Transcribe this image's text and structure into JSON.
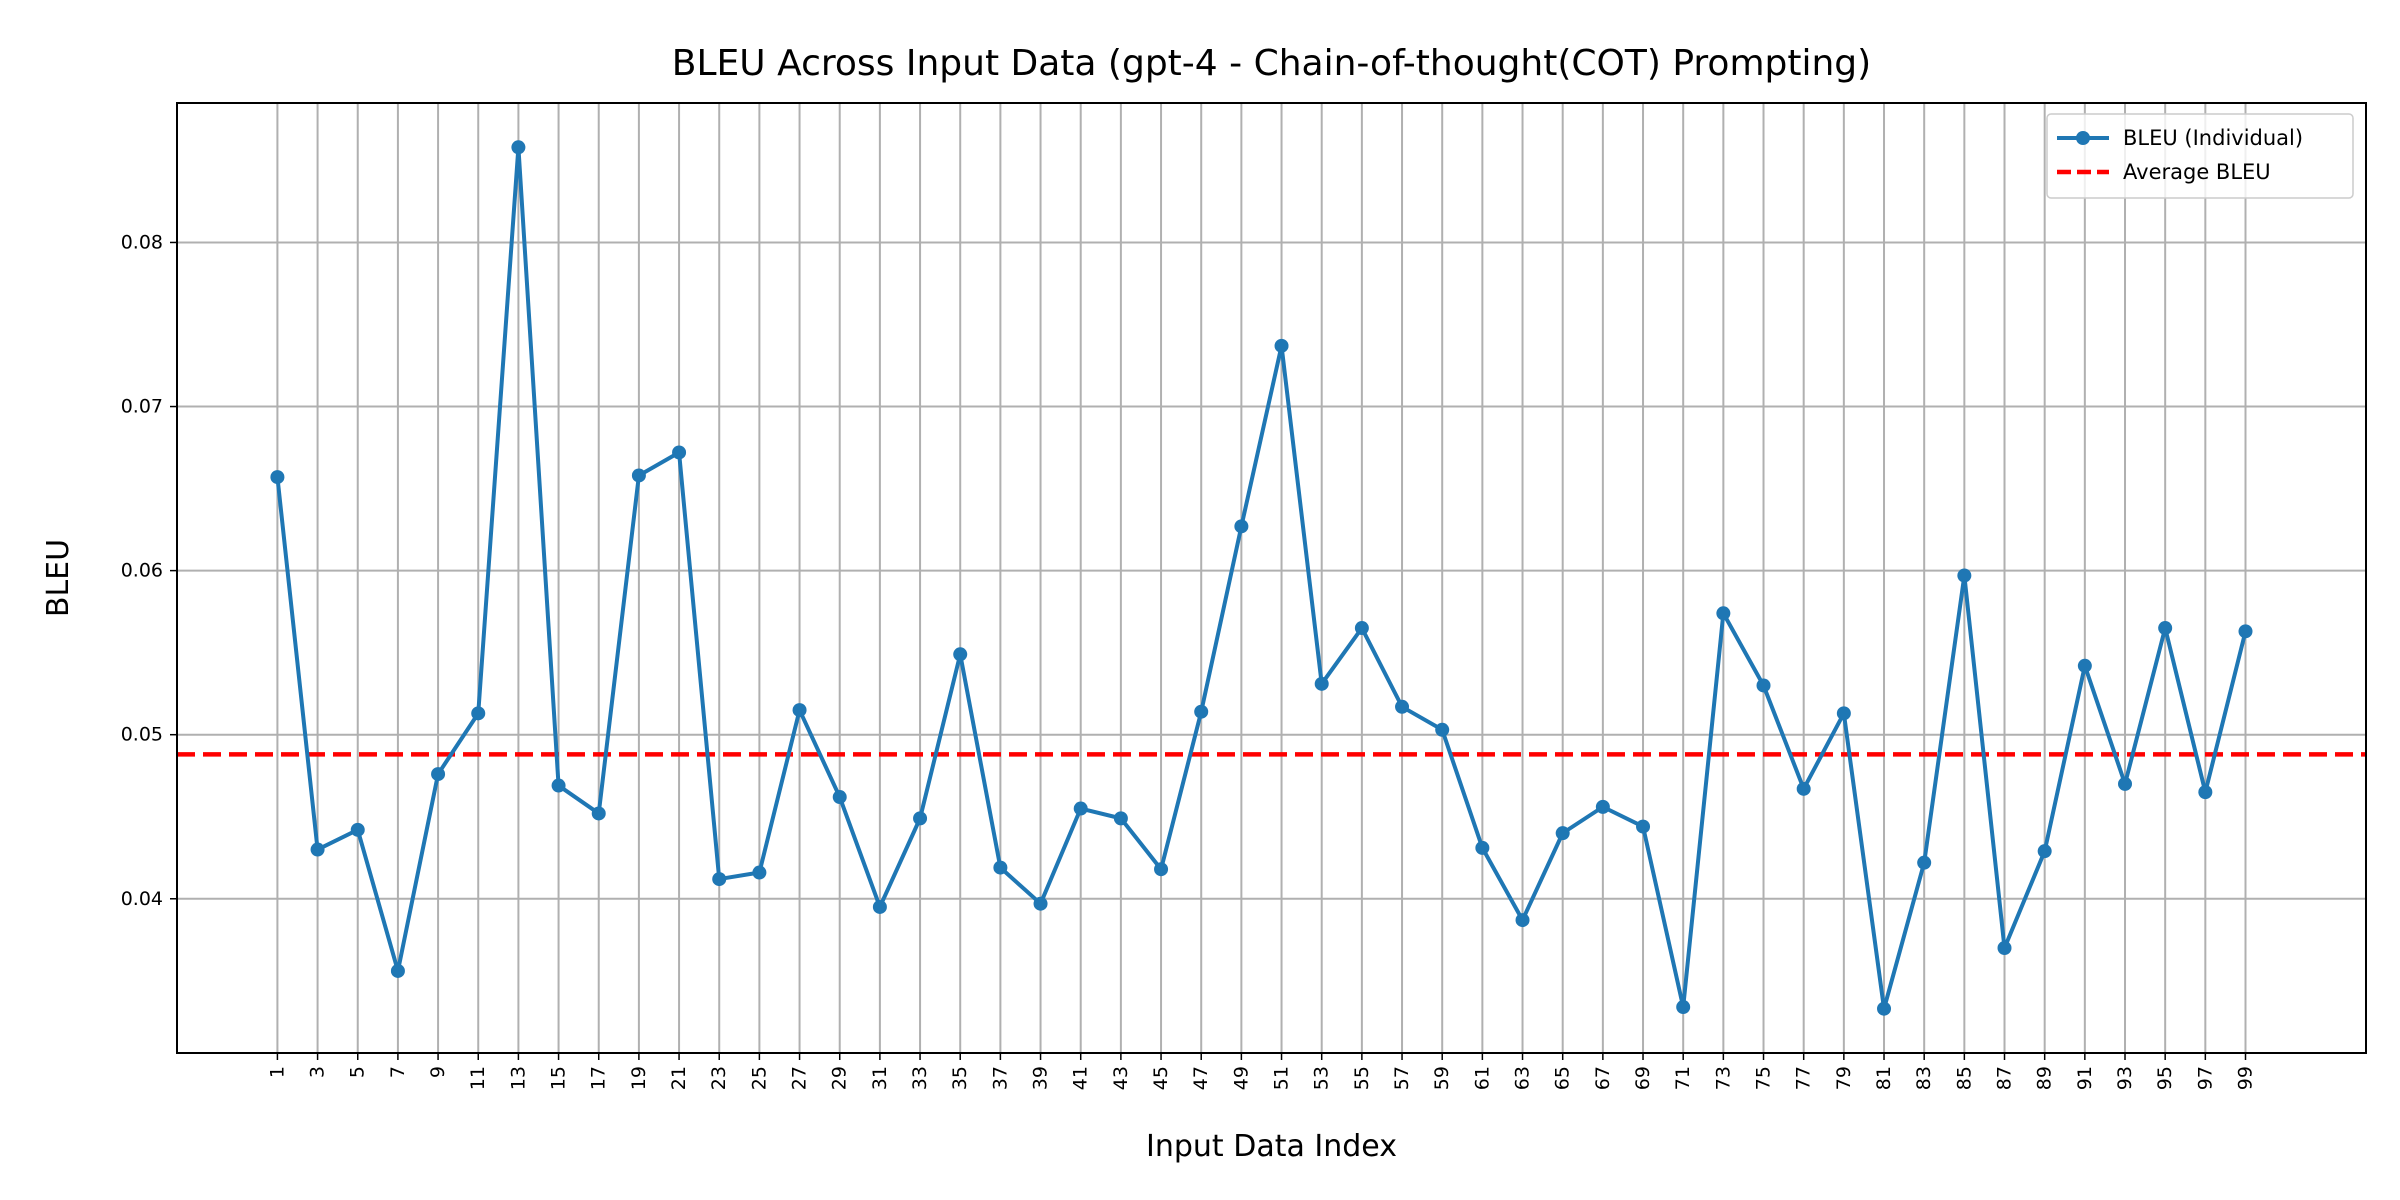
{
  "chart_data": {
    "type": "line",
    "title": "BLEU Across Input Data (gpt-4 - Chain-of-thought(COT) Prompting)",
    "xlabel": "Input Data Index",
    "ylabel": "BLEU",
    "x": [
      1,
      3,
      5,
      7,
      9,
      11,
      13,
      15,
      17,
      19,
      21,
      23,
      25,
      27,
      29,
      31,
      33,
      35,
      37,
      39,
      41,
      43,
      45,
      47,
      49,
      51,
      53,
      55,
      57,
      59,
      61,
      63,
      65,
      67,
      69,
      71,
      73,
      75,
      77,
      79,
      81,
      83,
      85,
      87,
      89,
      91,
      93,
      95,
      97,
      99
    ],
    "xlim": [
      -4,
      105
    ],
    "ylim": [
      0.0306,
      0.0885
    ],
    "yticks": [
      0.04,
      0.05,
      0.06,
      0.07,
      0.08
    ],
    "ytick_labels": [
      "0.04",
      "0.05",
      "0.06",
      "0.07",
      "0.08"
    ],
    "grid": true,
    "legend_position": "top-right",
    "series": [
      {
        "name": "BLEU (Individual)",
        "color": "#1f77b4",
        "style": "solid-with-markers",
        "values": [
          0.0657,
          0.043,
          0.0442,
          0.0356,
          0.0476,
          0.0513,
          0.0858,
          0.0469,
          0.0452,
          0.0658,
          0.0672,
          0.0412,
          0.0416,
          0.0515,
          0.0462,
          0.0395,
          0.0449,
          0.0549,
          0.0419,
          0.0397,
          0.0455,
          0.0449,
          0.0418,
          0.0514,
          0.0627,
          0.0737,
          0.0531,
          0.0565,
          0.0517,
          0.0503,
          0.0431,
          0.0387,
          0.044,
          0.0456,
          0.0444,
          0.0334,
          0.0574,
          0.053,
          0.0467,
          0.0513,
          0.0333,
          0.0422,
          0.0597,
          0.037,
          0.0429,
          0.0542,
          0.047,
          0.0565,
          0.0465,
          0.0563
        ]
      },
      {
        "name": "Average BLEU",
        "color": "#ff0000",
        "style": "dashed",
        "value": 0.0488
      }
    ]
  }
}
